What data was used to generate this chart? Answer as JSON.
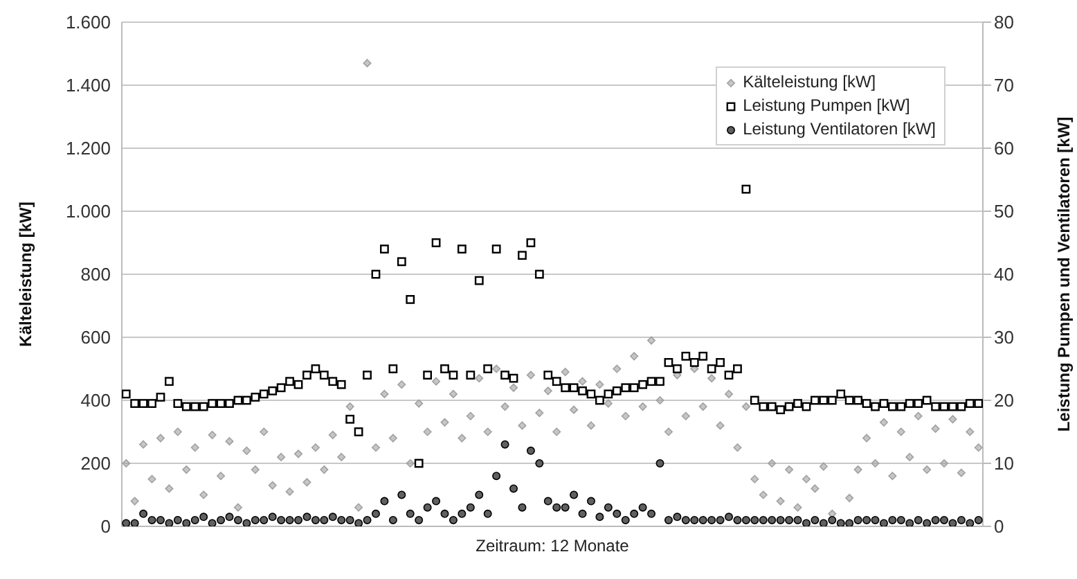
{
  "chart_data": {
    "type": "scatter",
    "xlabel": "Zeitraum: 12 Monate",
    "ylabel": "Kälteleistung [kW]",
    "y2label": "Leistung Pumpen und Ventilatoren [kW]",
    "categories": [
      null,
      null,
      null,
      null,
      null,
      null,
      null,
      null,
      null,
      null,
      null,
      null,
      null,
      null,
      null,
      null,
      null,
      null,
      null,
      null,
      null,
      null,
      null,
      null,
      null,
      null,
      null,
      null,
      null,
      null,
      null,
      null,
      null,
      null,
      null,
      null,
      null,
      null,
      null,
      null,
      null,
      null,
      null,
      null,
      null,
      null,
      null,
      null,
      null,
      null,
      null,
      null,
      null,
      null,
      null,
      null,
      null,
      null,
      null,
      null,
      null,
      null,
      null,
      null,
      null,
      null,
      null,
      null,
      null,
      null,
      null,
      null,
      null,
      null,
      null,
      null,
      null,
      null,
      null,
      null,
      null,
      null,
      null,
      null,
      null,
      null,
      null,
      null,
      null,
      null,
      null,
      null,
      null,
      null,
      null,
      null,
      null,
      null,
      null,
      null
    ],
    "series": [
      {
        "name": "Kälteleistung [kW]",
        "color": "#a0a0a0",
        "marker": "diamond",
        "values": [
          200,
          80,
          260,
          150,
          280,
          120,
          300,
          180,
          250,
          100,
          290,
          160,
          270,
          60,
          240,
          180,
          300,
          130,
          220,
          110,
          230,
          140,
          250,
          180,
          290,
          220,
          380,
          60,
          1470,
          250,
          420,
          280,
          450,
          200,
          390,
          300,
          460,
          330,
          420,
          280,
          350,
          470,
          300,
          500,
          380,
          440,
          320,
          480,
          360,
          430,
          300,
          490,
          370,
          460,
          320,
          450,
          390,
          500,
          350,
          540,
          380,
          590,
          400,
          300,
          480,
          350,
          500,
          380,
          470,
          320,
          420,
          250,
          380,
          150,
          100,
          200,
          80,
          180,
          60,
          150,
          120,
          190,
          40,
          10,
          90,
          180,
          280,
          200,
          330,
          160,
          300,
          220,
          350,
          180,
          310,
          200,
          340,
          170,
          300,
          250
        ]
      },
      {
        "name": "Leistung Pumpen  [kW]",
        "color": "#000000",
        "marker": "square",
        "axis": "y2",
        "values": [
          21,
          19.5,
          19.5,
          19.5,
          20.5,
          23,
          19.5,
          19,
          19,
          19,
          19.5,
          19.5,
          19.5,
          20,
          20,
          20.5,
          21,
          21.5,
          22,
          23,
          22.5,
          24,
          25,
          24,
          23,
          22.5,
          17,
          15,
          24,
          40,
          44,
          25,
          42,
          36,
          10,
          24,
          45,
          25,
          24,
          44,
          24,
          39,
          25,
          44,
          24,
          23.5,
          43,
          45,
          40,
          24,
          23,
          22,
          22,
          21.5,
          21,
          20,
          21,
          21.5,
          22,
          22,
          22.5,
          23,
          23,
          26,
          25,
          27,
          26,
          27,
          25,
          26,
          24,
          25,
          53.5,
          20,
          19,
          19,
          18.5,
          19,
          19.5,
          19,
          20,
          20,
          20,
          21,
          20,
          20,
          19.5,
          19,
          19.5,
          19,
          19,
          19.5,
          19.5,
          20,
          19,
          19,
          19,
          19,
          19.5,
          19.5
        ]
      },
      {
        "name": "Leistung Ventilatoren [kW]",
        "color": "#606060",
        "marker": "circle",
        "axis": "y2",
        "values": [
          0.5,
          0.5,
          2,
          1,
          1,
          0.5,
          1,
          0.5,
          1,
          1.5,
          0.5,
          1,
          1.5,
          1,
          0.5,
          1,
          1,
          1.5,
          1,
          1,
          1,
          1.5,
          1,
          1,
          1.5,
          1,
          1,
          0.5,
          1,
          2,
          4,
          1,
          5,
          2,
          1,
          3,
          4,
          2,
          1,
          2,
          3,
          5,
          2,
          8,
          13,
          6,
          3,
          12,
          10,
          4,
          3,
          3,
          5,
          2,
          4,
          1.5,
          3,
          2,
          1,
          2,
          3,
          2,
          10,
          1,
          1.5,
          1,
          1,
          1,
          1,
          1,
          1.5,
          1,
          1,
          1,
          1,
          1,
          1,
          1,
          1,
          0.5,
          1,
          0.5,
          1,
          0.5,
          0.5,
          1,
          1,
          1,
          0.5,
          1,
          1,
          0.5,
          1,
          0.5,
          1,
          1,
          0.5,
          1,
          0.5,
          1
        ]
      }
    ],
    "ylim": [
      0,
      1600
    ],
    "yticks": [
      0,
      200,
      400,
      600,
      800,
      {
        "value": 1000,
        "label": "1.000"
      },
      {
        "value": 1200,
        "label": "1.200"
      },
      {
        "value": 1400,
        "label": "1.400"
      },
      {
        "value": 1600,
        "label": "1.600"
      }
    ],
    "y2lim": [
      0,
      80
    ],
    "y2ticks": [
      0,
      10,
      20,
      30,
      40,
      50,
      60,
      70,
      80
    ],
    "grid": "y",
    "legend": "top right"
  }
}
